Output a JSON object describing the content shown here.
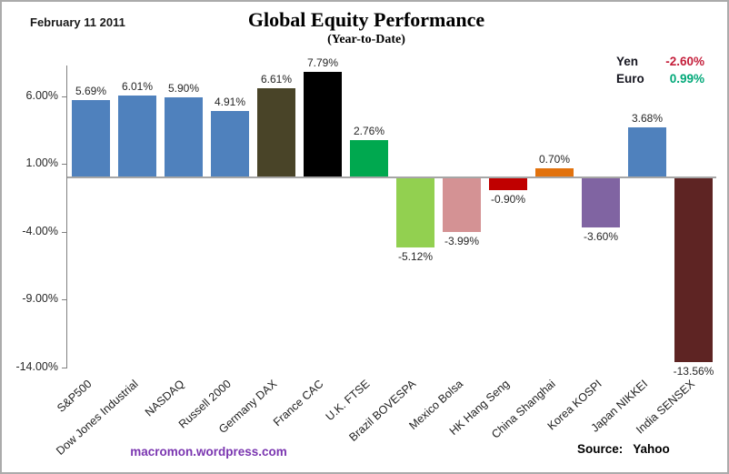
{
  "header": {
    "date": "February 11 2011",
    "title": "Global Equity Performance",
    "subtitle": "(Year-to-Date)"
  },
  "legend": {
    "items": [
      {
        "label": "Yen",
        "value": "-2.60%",
        "color": "#c41e3a"
      },
      {
        "label": "Euro",
        "value": "0.99%",
        "color": "#00a878"
      }
    ]
  },
  "footer": {
    "site": "macromon.wordpress.com",
    "site_color": "#7a35b0",
    "source_label": "Source:",
    "source_value": "Yahoo"
  },
  "chart_data": {
    "type": "bar",
    "title": "Global Equity Performance",
    "subtitle": "(Year-to-Date)",
    "xlabel": "",
    "ylabel": "",
    "categories": [
      "S&P500",
      "Dow Jones Industrial",
      "NASDAQ",
      "Russell 2000",
      "Germany DAX",
      "France CAC",
      "U.K. FTSE",
      "Brazil BOVESPA",
      "Mexico Bolsa",
      "HK Hang Seng",
      "China Shanghai",
      "Korea KOSPI",
      "Japan NIKKEI",
      "India SENSEX"
    ],
    "values": [
      5.69,
      6.01,
      5.9,
      4.91,
      6.61,
      7.79,
      2.76,
      -5.12,
      -3.99,
      -0.9,
      0.7,
      -3.6,
      3.68,
      -13.56
    ],
    "labels": [
      "5.69%",
      "6.01%",
      "5.90%",
      "4.91%",
      "6.61%",
      "7.79%",
      "2.76%",
      "-5.12%",
      "-3.99%",
      "-0.90%",
      "0.70%",
      "-3.60%",
      "3.68%",
      "-13.56%"
    ],
    "bar_colors": [
      "#4f81bd",
      "#4f81bd",
      "#4f81bd",
      "#4f81bd",
      "#494428",
      "#000000",
      "#00a84f",
      "#92d050",
      "#d49294",
      "#c00000",
      "#e2720d",
      "#8064a2",
      "#4f81bd",
      "#5e2423"
    ],
    "ylim": [
      -14.9,
      8.2
    ],
    "yticks": [
      {
        "value": 6,
        "label": "6.00%"
      },
      {
        "value": 1,
        "label": "1.00%"
      },
      {
        "value": -4,
        "label": "-4.00%"
      },
      {
        "value": -9,
        "label": "-9.00%"
      },
      {
        "value": -14,
        "label": "-14.00%"
      }
    ],
    "grid": false,
    "legend_position": "top-right",
    "data_labels": true
  }
}
